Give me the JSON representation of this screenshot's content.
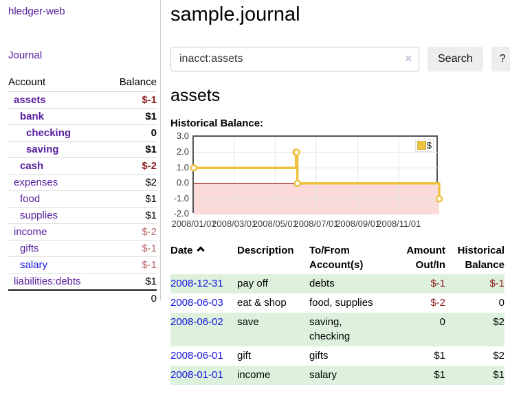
{
  "sidebar": {
    "app_title": "hledger-web",
    "nav_journal": "Journal",
    "accounts_table": {
      "headers": [
        "Account",
        "Balance"
      ],
      "rows": [
        {
          "name": "assets",
          "indent": 0,
          "bold": true,
          "balance": "$-1",
          "balance_style": "neg-strong"
        },
        {
          "name": "bank",
          "indent": 1,
          "bold": true,
          "balance": "$1",
          "balance_style": "pos-strong"
        },
        {
          "name": "checking",
          "indent": 2,
          "bold": true,
          "balance": "0",
          "balance_style": "pos-strong"
        },
        {
          "name": "saving",
          "indent": 2,
          "bold": true,
          "balance": "$1",
          "balance_style": "pos-strong"
        },
        {
          "name": "cash",
          "indent": 1,
          "bold": true,
          "balance": "$-2",
          "balance_style": "neg-strong"
        },
        {
          "name": "expenses",
          "indent": 0,
          "bold": false,
          "balance": "$2",
          "balance_style": "pos"
        },
        {
          "name": "food",
          "indent": 1,
          "bold": false,
          "balance": "$1",
          "balance_style": "pos"
        },
        {
          "name": "supplies",
          "indent": 1,
          "bold": false,
          "balance": "$1",
          "balance_style": "pos"
        },
        {
          "name": "income",
          "indent": 0,
          "bold": false,
          "balance": "$-2",
          "balance_style": "neg-soft"
        },
        {
          "name": "gifts",
          "indent": 1,
          "bold": false,
          "balance": "$-1",
          "balance_style": "neg-soft"
        },
        {
          "name": "salary",
          "indent": 1,
          "bold": false,
          "balance": "$-1",
          "balance_style": "neg-soft",
          "link_style": "unvisited"
        },
        {
          "name": "liabilities:debts",
          "indent": 0,
          "bold": false,
          "balance": "$1",
          "balance_style": "pos"
        }
      ],
      "total": "0"
    }
  },
  "header": {
    "title": "sample.journal"
  },
  "search": {
    "value": "inacct:assets",
    "clear_icon": "✕",
    "button_label": "Search",
    "help_label": "?"
  },
  "account_page": {
    "title": "assets",
    "chart_label": "Historical Balance:"
  },
  "chart_data": {
    "type": "line",
    "step": true,
    "title": "Historical Balance",
    "x_range": [
      "2008-01-01",
      "2008-12-31"
    ],
    "ylim": [
      -2,
      3
    ],
    "y_ticks": [
      3.0,
      2.0,
      1.0,
      0.0,
      -1.0,
      -2.0
    ],
    "y_tick_labels": [
      "3.0",
      "2.0",
      "1.0",
      "0.0",
      "-1.0",
      "-2.0"
    ],
    "x_ticks": [
      "2008/01/01",
      "2008/03/01",
      "2008/05/01",
      "2008/07/01",
      "2008/09/01",
      "2008/11/01"
    ],
    "series": [
      {
        "name": "$",
        "color": "#edc240",
        "points": [
          {
            "date": "2008-01-01",
            "value": 1
          },
          {
            "date": "2008-06-01",
            "value": 2
          },
          {
            "date": "2008-06-02",
            "value": 2
          },
          {
            "date": "2008-06-03",
            "value": 0
          },
          {
            "date": "2008-12-31",
            "value": -1
          }
        ]
      }
    ],
    "legend": {
      "label": "$",
      "position": "top-right"
    },
    "grid_color": "#e3e3e3",
    "border_color": "#545454",
    "zero_line_color": "#8b0000",
    "negative_region_fill": "#fadbd9"
  },
  "register_table": {
    "headers": [
      {
        "label": "Date",
        "sorted": "ascending"
      },
      {
        "label": "Description"
      },
      {
        "label": "To/From Account(s)"
      },
      {
        "label": "Amount Out/In"
      },
      {
        "label": "Historical Balance"
      }
    ],
    "rows": [
      {
        "date": "2008-12-31",
        "description": "pay off",
        "accounts": "debts",
        "amount": "$-1",
        "amount_negative": true,
        "balance": "$-1",
        "balance_negative": true
      },
      {
        "date": "2008-06-03",
        "description": "eat & shop",
        "accounts": "food, supplies",
        "amount": "$-2",
        "amount_negative": true,
        "balance": "0",
        "balance_negative": false
      },
      {
        "date": "2008-06-02",
        "description": "save",
        "accounts": "saving, checking",
        "amount": "0",
        "amount_negative": false,
        "balance": "$2",
        "balance_negative": false
      },
      {
        "date": "2008-06-01",
        "description": "gift",
        "accounts": "gifts",
        "amount": "$1",
        "amount_negative": false,
        "balance": "$2",
        "balance_negative": false
      },
      {
        "date": "2008-01-01",
        "description": "income",
        "accounts": "salary",
        "amount": "$1",
        "amount_negative": false,
        "balance": "$1",
        "balance_negative": false
      }
    ]
  },
  "colors": {
    "link_purple": "#561d9e",
    "link_blue": "#1414e0",
    "negative_strong": "#8f1d1d",
    "negative_soft": "#bb6a6a",
    "row_stripe_green": "#ddf1dd",
    "series_gold": "#edc240"
  }
}
